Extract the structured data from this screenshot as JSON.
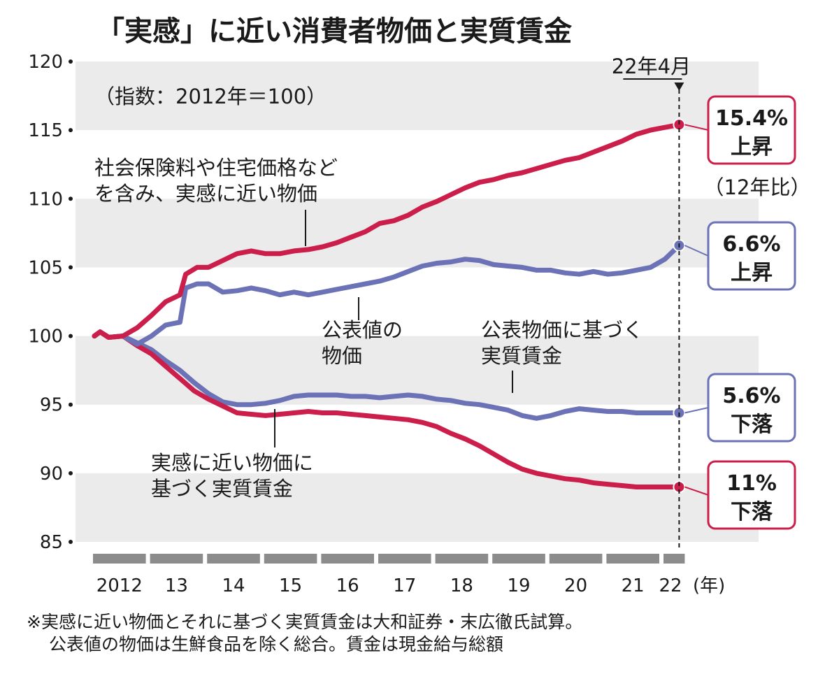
{
  "chart_data": {
    "type": "line",
    "title": "「実感」に近い消費者物価と実質賃金",
    "subtitle": "（指数：2012年＝100）",
    "ylim": [
      85,
      120
    ],
    "y_ticks": [
      120,
      115,
      110,
      105,
      100,
      95,
      90,
      85
    ],
    "x_ticks": [
      "2012",
      "13",
      "14",
      "15",
      "16",
      "17",
      "18",
      "19",
      "20",
      "21",
      "22"
    ],
    "x_unit": "(年)",
    "xlim": [
      2012.0,
      2022.5
    ],
    "grid": "alternating horizontal bands",
    "marker_label": "22年4月",
    "marker_x": 2022.25,
    "series": [
      {
        "name": "社会保険料や住宅価格などを含み、実感に近い物価",
        "color": "#cc1e4a",
        "points": [
          [
            2012.0,
            100
          ],
          [
            2012.1,
            100.3
          ],
          [
            2012.25,
            99.9
          ],
          [
            2012.5,
            100
          ],
          [
            2012.75,
            100.6
          ],
          [
            2013.0,
            101.5
          ],
          [
            2013.25,
            102.5
          ],
          [
            2013.5,
            103
          ],
          [
            2013.6,
            104.5
          ],
          [
            2013.8,
            105
          ],
          [
            2014.0,
            105
          ],
          [
            2014.25,
            105.5
          ],
          [
            2014.5,
            106
          ],
          [
            2014.75,
            106.2
          ],
          [
            2015.0,
            106
          ],
          [
            2015.25,
            106
          ],
          [
            2015.5,
            106.2
          ],
          [
            2015.75,
            106.3
          ],
          [
            2016.0,
            106.5
          ],
          [
            2016.25,
            106.8
          ],
          [
            2016.5,
            107.2
          ],
          [
            2016.75,
            107.6
          ],
          [
            2017.0,
            108.2
          ],
          [
            2017.25,
            108.4
          ],
          [
            2017.5,
            108.8
          ],
          [
            2017.75,
            109.4
          ],
          [
            2018.0,
            109.8
          ],
          [
            2018.25,
            110.3
          ],
          [
            2018.5,
            110.8
          ],
          [
            2018.75,
            111.2
          ],
          [
            2019.0,
            111.4
          ],
          [
            2019.25,
            111.7
          ],
          [
            2019.5,
            111.9
          ],
          [
            2019.75,
            112.2
          ],
          [
            2020.0,
            112.5
          ],
          [
            2020.25,
            112.8
          ],
          [
            2020.5,
            113.0
          ],
          [
            2020.75,
            113.4
          ],
          [
            2021.0,
            113.8
          ],
          [
            2021.25,
            114.2
          ],
          [
            2021.5,
            114.7
          ],
          [
            2021.75,
            115.0
          ],
          [
            2022.0,
            115.2
          ],
          [
            2022.25,
            115.4
          ]
        ],
        "end_label": [
          "15.4%",
          "上昇"
        ],
        "end_note": "（12年比）"
      },
      {
        "name": "公表値の物価",
        "color": "#6b72b6",
        "points": [
          [
            2012.0,
            100
          ],
          [
            2012.1,
            100.3
          ],
          [
            2012.25,
            99.9
          ],
          [
            2012.5,
            100
          ],
          [
            2012.75,
            99.4
          ],
          [
            2013.0,
            100
          ],
          [
            2013.25,
            100.8
          ],
          [
            2013.5,
            101
          ],
          [
            2013.6,
            103.5
          ],
          [
            2013.8,
            103.8
          ],
          [
            2014.0,
            103.8
          ],
          [
            2014.25,
            103.2
          ],
          [
            2014.5,
            103.3
          ],
          [
            2014.75,
            103.5
          ],
          [
            2015.0,
            103.3
          ],
          [
            2015.25,
            103.0
          ],
          [
            2015.5,
            103.2
          ],
          [
            2015.75,
            103.0
          ],
          [
            2016.0,
            103.2
          ],
          [
            2016.25,
            103.4
          ],
          [
            2016.5,
            103.6
          ],
          [
            2016.75,
            103.8
          ],
          [
            2017.0,
            104.0
          ],
          [
            2017.25,
            104.3
          ],
          [
            2017.5,
            104.7
          ],
          [
            2017.75,
            105.1
          ],
          [
            2018.0,
            105.3
          ],
          [
            2018.25,
            105.4
          ],
          [
            2018.5,
            105.6
          ],
          [
            2018.75,
            105.5
          ],
          [
            2019.0,
            105.2
          ],
          [
            2019.25,
            105.1
          ],
          [
            2019.5,
            105.0
          ],
          [
            2019.75,
            104.8
          ],
          [
            2020.0,
            104.8
          ],
          [
            2020.25,
            104.6
          ],
          [
            2020.5,
            104.5
          ],
          [
            2020.75,
            104.7
          ],
          [
            2021.0,
            104.5
          ],
          [
            2021.25,
            104.6
          ],
          [
            2021.5,
            104.8
          ],
          [
            2021.75,
            105.0
          ],
          [
            2022.0,
            105.6
          ],
          [
            2022.25,
            106.6
          ]
        ],
        "end_label": [
          "6.6%",
          "上昇"
        ]
      },
      {
        "name": "公表物価に基づく実質賃金",
        "color": "#6b72b6",
        "points": [
          [
            2012.0,
            100
          ],
          [
            2012.1,
            100.3
          ],
          [
            2012.25,
            99.9
          ],
          [
            2012.5,
            100
          ],
          [
            2012.75,
            99.5
          ],
          [
            2013.0,
            99.0
          ],
          [
            2013.25,
            98.2
          ],
          [
            2013.5,
            97.5
          ],
          [
            2013.75,
            96.6
          ],
          [
            2014.0,
            95.8
          ],
          [
            2014.25,
            95.2
          ],
          [
            2014.5,
            95.0
          ],
          [
            2014.75,
            95.0
          ],
          [
            2015.0,
            95.1
          ],
          [
            2015.25,
            95.3
          ],
          [
            2015.5,
            95.6
          ],
          [
            2015.75,
            95.7
          ],
          [
            2016.0,
            95.7
          ],
          [
            2016.25,
            95.7
          ],
          [
            2016.5,
            95.6
          ],
          [
            2016.75,
            95.6
          ],
          [
            2017.0,
            95.5
          ],
          [
            2017.25,
            95.6
          ],
          [
            2017.5,
            95.7
          ],
          [
            2017.75,
            95.6
          ],
          [
            2018.0,
            95.4
          ],
          [
            2018.25,
            95.3
          ],
          [
            2018.5,
            95.1
          ],
          [
            2018.75,
            95.0
          ],
          [
            2019.0,
            94.8
          ],
          [
            2019.25,
            94.6
          ],
          [
            2019.5,
            94.2
          ],
          [
            2019.75,
            94.0
          ],
          [
            2020.0,
            94.2
          ],
          [
            2020.25,
            94.5
          ],
          [
            2020.5,
            94.7
          ],
          [
            2020.75,
            94.6
          ],
          [
            2021.0,
            94.5
          ],
          [
            2021.25,
            94.5
          ],
          [
            2021.5,
            94.4
          ],
          [
            2021.75,
            94.4
          ],
          [
            2022.0,
            94.4
          ],
          [
            2022.25,
            94.4
          ]
        ],
        "end_label": [
          "5.6%",
          "下落"
        ]
      },
      {
        "name": "実感に近い物価に基づく実質賃金",
        "color": "#cc1e4a",
        "points": [
          [
            2012.0,
            100
          ],
          [
            2012.1,
            100.3
          ],
          [
            2012.25,
            99.9
          ],
          [
            2012.5,
            100
          ],
          [
            2012.75,
            99.3
          ],
          [
            2013.0,
            98.7
          ],
          [
            2013.25,
            97.8
          ],
          [
            2013.5,
            96.9
          ],
          [
            2013.75,
            96.0
          ],
          [
            2014.0,
            95.4
          ],
          [
            2014.25,
            94.9
          ],
          [
            2014.5,
            94.4
          ],
          [
            2014.75,
            94.3
          ],
          [
            2015.0,
            94.2
          ],
          [
            2015.25,
            94.3
          ],
          [
            2015.5,
            94.4
          ],
          [
            2015.75,
            94.5
          ],
          [
            2016.0,
            94.4
          ],
          [
            2016.25,
            94.4
          ],
          [
            2016.5,
            94.3
          ],
          [
            2016.75,
            94.2
          ],
          [
            2017.0,
            94.1
          ],
          [
            2017.25,
            94.0
          ],
          [
            2017.5,
            93.9
          ],
          [
            2017.75,
            93.7
          ],
          [
            2018.0,
            93.4
          ],
          [
            2018.25,
            92.9
          ],
          [
            2018.5,
            92.5
          ],
          [
            2018.75,
            92.0
          ],
          [
            2019.0,
            91.4
          ],
          [
            2019.25,
            90.8
          ],
          [
            2019.5,
            90.3
          ],
          [
            2019.75,
            90.0
          ],
          [
            2020.0,
            89.8
          ],
          [
            2020.25,
            89.6
          ],
          [
            2020.5,
            89.5
          ],
          [
            2020.75,
            89.3
          ],
          [
            2021.0,
            89.2
          ],
          [
            2021.25,
            89.1
          ],
          [
            2021.5,
            89.0
          ],
          [
            2021.75,
            89.0
          ],
          [
            2022.0,
            89.0
          ],
          [
            2022.25,
            89.0
          ]
        ],
        "end_label": [
          "11%",
          "下落"
        ]
      }
    ],
    "annotations": [
      [
        "社会保険料や住宅価格など",
        "を含み、実感に近い物価"
      ],
      [
        "公表値の",
        "物価"
      ],
      [
        "公表物価に基づく",
        "実質賃金"
      ],
      [
        "実感に近い物価に",
        "基づく実質賃金"
      ]
    ]
  },
  "footnote": [
    "※実感に近い物価とそれに基づく実質賃金は大和証券・末広徹氏試算。",
    "公表値の物価は生鮮食品を除く総合。賃金は現金給与総額"
  ]
}
